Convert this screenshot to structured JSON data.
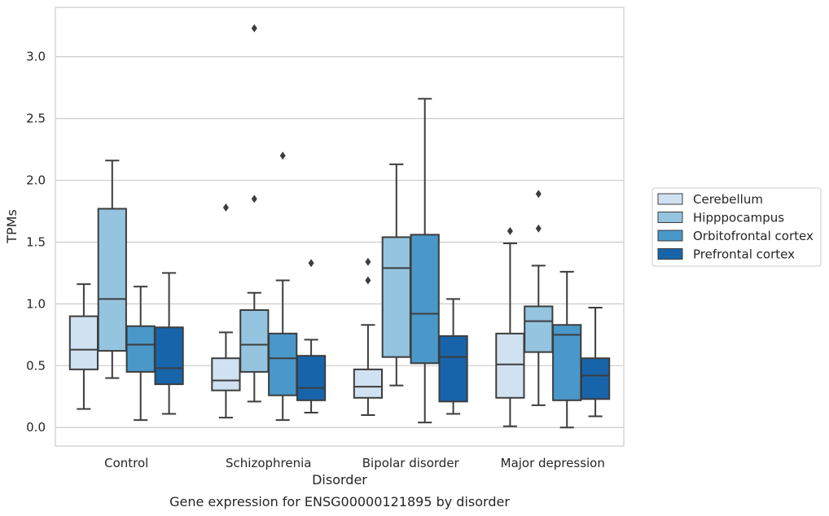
{
  "chart_data": {
    "type": "box",
    "caption": "Gene expression for ENSG00000121895 by disorder",
    "xlabel": "Disorder",
    "ylabel": "TPMs",
    "ylim": [
      -0.15,
      3.4
    ],
    "yticks": [
      "0.0",
      "0.5",
      "1.0",
      "1.5",
      "2.0",
      "2.5",
      "3.0"
    ],
    "grid": "horizontal",
    "legend_position": "right",
    "categories": [
      "Control",
      "Schizophrenia",
      "Bipolar disorder",
      "Major depression"
    ],
    "series": [
      {
        "name": "Cerebellum",
        "color": "#d0e1f2",
        "boxes": [
          {
            "whislo": 0.15,
            "q1": 0.47,
            "med": 0.63,
            "q3": 0.9,
            "whishi": 1.16,
            "fliers": []
          },
          {
            "whislo": 0.08,
            "q1": 0.3,
            "med": 0.38,
            "q3": 0.56,
            "whishi": 0.77,
            "fliers": [
              1.78
            ]
          },
          {
            "whislo": 0.1,
            "q1": 0.24,
            "med": 0.33,
            "q3": 0.47,
            "whishi": 0.83,
            "fliers": [
              1.19,
              1.34
            ]
          },
          {
            "whislo": 0.01,
            "q1": 0.24,
            "med": 0.51,
            "q3": 0.76,
            "whishi": 1.49,
            "fliers": [
              1.59
            ]
          }
        ]
      },
      {
        "name": "Hipppocampus",
        "color": "#94c4df",
        "boxes": [
          {
            "whislo": 0.4,
            "q1": 0.62,
            "med": 1.04,
            "q3": 1.77,
            "whishi": 2.16,
            "fliers": []
          },
          {
            "whislo": 0.21,
            "q1": 0.45,
            "med": 0.67,
            "q3": 0.95,
            "whishi": 1.09,
            "fliers": [
              1.85,
              3.23
            ]
          },
          {
            "whislo": 0.34,
            "q1": 0.57,
            "med": 1.29,
            "q3": 1.54,
            "whishi": 2.13,
            "fliers": []
          },
          {
            "whislo": 0.18,
            "q1": 0.61,
            "med": 0.86,
            "q3": 0.98,
            "whishi": 1.31,
            "fliers": [
              1.61,
              1.89
            ]
          }
        ]
      },
      {
        "name": "Orbitofrontal cortex",
        "color": "#4a98c9",
        "boxes": [
          {
            "whislo": 0.06,
            "q1": 0.45,
            "med": 0.67,
            "q3": 0.82,
            "whishi": 1.14,
            "fliers": []
          },
          {
            "whislo": 0.06,
            "q1": 0.26,
            "med": 0.56,
            "q3": 0.76,
            "whishi": 1.19,
            "fliers": [
              2.2
            ]
          },
          {
            "whislo": 0.04,
            "q1": 0.52,
            "med": 0.92,
            "q3": 1.56,
            "whishi": 2.66,
            "fliers": []
          },
          {
            "whislo": 0.0,
            "q1": 0.22,
            "med": 0.75,
            "q3": 0.83,
            "whishi": 1.26,
            "fliers": []
          }
        ]
      },
      {
        "name": "Prefrontal cortex",
        "color": "#1764ab",
        "boxes": [
          {
            "whislo": 0.11,
            "q1": 0.35,
            "med": 0.48,
            "q3": 0.81,
            "whishi": 1.25,
            "fliers": []
          },
          {
            "whislo": 0.12,
            "q1": 0.22,
            "med": 0.32,
            "q3": 0.58,
            "whishi": 0.71,
            "fliers": [
              1.33
            ]
          },
          {
            "whislo": 0.11,
            "q1": 0.21,
            "med": 0.57,
            "q3": 0.74,
            "whishi": 1.04,
            "fliers": []
          },
          {
            "whislo": 0.09,
            "q1": 0.23,
            "med": 0.42,
            "q3": 0.56,
            "whishi": 0.97,
            "fliers": []
          }
        ]
      }
    ]
  }
}
